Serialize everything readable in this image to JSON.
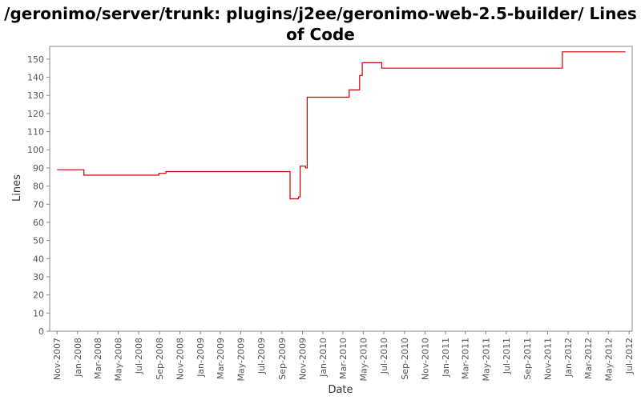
{
  "chart_data": {
    "type": "line",
    "title": "/geronimo/server/trunk: plugins/j2ee/geronimo-web-2.5-builder/ Lines of Code",
    "xlabel": "Date",
    "ylabel": "Lines",
    "ylim": [
      0,
      157
    ],
    "xlim": [
      "2007-10-10",
      "2012-07-10"
    ],
    "x_tick_labels": [
      "Nov-2007",
      "Jan-2008",
      "Mar-2008",
      "May-2008",
      "Jul-2008",
      "Sep-2008",
      "Nov-2008",
      "Jan-2009",
      "Mar-2009",
      "May-2009",
      "Jul-2009",
      "Sep-2009",
      "Nov-2009",
      "Jan-2010",
      "Mar-2010",
      "May-2010",
      "Jul-2010",
      "Sep-2010",
      "Nov-2010",
      "Jan-2011",
      "Mar-2011",
      "May-2011",
      "Jul-2011",
      "Sep-2011",
      "Nov-2011",
      "Jan-2012",
      "Mar-2012",
      "May-2012",
      "Jul-2012"
    ],
    "x_tick_dates": [
      "2007-11-01",
      "2008-01-01",
      "2008-03-01",
      "2008-05-01",
      "2008-07-01",
      "2008-09-01",
      "2008-11-01",
      "2009-01-01",
      "2009-03-01",
      "2009-05-01",
      "2009-07-01",
      "2009-09-01",
      "2009-11-01",
      "2010-01-01",
      "2010-03-01",
      "2010-05-01",
      "2010-07-01",
      "2010-09-01",
      "2010-11-01",
      "2011-01-01",
      "2011-03-01",
      "2011-05-01",
      "2011-07-01",
      "2011-09-01",
      "2011-11-01",
      "2012-01-01",
      "2012-03-01",
      "2012-05-01",
      "2012-07-01"
    ],
    "y_ticks": [
      0,
      10,
      20,
      30,
      40,
      50,
      60,
      70,
      80,
      90,
      100,
      110,
      120,
      130,
      140,
      150
    ],
    "grid": false,
    "series": [
      {
        "color": "#cc0000",
        "step": true,
        "points": [
          [
            "2007-11-01",
            89
          ],
          [
            "2008-01-20",
            86
          ],
          [
            "2008-08-30",
            87
          ],
          [
            "2008-09-20",
            88
          ],
          [
            "2009-09-25",
            73
          ],
          [
            "2009-10-20",
            74
          ],
          [
            "2009-10-25",
            91
          ],
          [
            "2009-11-10",
            90
          ],
          [
            "2009-11-15",
            129
          ],
          [
            "2010-03-20",
            133
          ],
          [
            "2010-04-20",
            141
          ],
          [
            "2010-04-28",
            148
          ],
          [
            "2010-06-25",
            145
          ],
          [
            "2011-12-15",
            154
          ],
          [
            "2012-06-20",
            154
          ]
        ]
      }
    ]
  }
}
